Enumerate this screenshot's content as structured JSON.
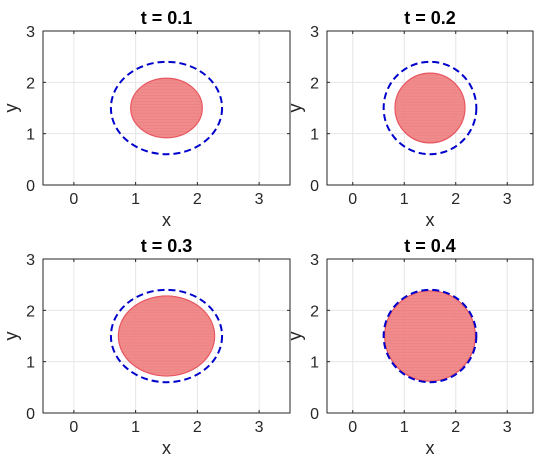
{
  "chart_data": [
    {
      "type": "scatter",
      "title": "t = 0.1",
      "xlabel": "x",
      "ylabel": "y",
      "xlim": [
        -0.5,
        3.5
      ],
      "ylim": [
        0,
        3
      ],
      "xticks": [
        0,
        1,
        2,
        3
      ],
      "yticks": [
        0,
        1,
        2,
        3
      ],
      "grid": true,
      "filled_disk": {
        "cx": 1.5,
        "cy": 1.5,
        "r": 0.58,
        "color": "#f08080"
      },
      "dashed_circle": {
        "cx": 1.5,
        "cy": 1.5,
        "r": 0.9,
        "color": "#0000cc"
      }
    },
    {
      "type": "scatter",
      "title": "t = 0.2",
      "xlabel": "x",
      "ylabel": "y",
      "xlim": [
        -0.5,
        3.5
      ],
      "ylim": [
        0,
        3
      ],
      "xticks": [
        0,
        1,
        2,
        3
      ],
      "yticks": [
        0,
        1,
        2,
        3
      ],
      "grid": true,
      "filled_disk": {
        "cx": 1.5,
        "cy": 1.5,
        "r": 0.68,
        "color": "#f08080"
      },
      "dashed_circle": {
        "cx": 1.5,
        "cy": 1.5,
        "r": 0.9,
        "color": "#0000cc"
      }
    },
    {
      "type": "scatter",
      "title": "t = 0.3",
      "xlabel": "x",
      "ylabel": "y",
      "xlim": [
        -0.5,
        3.5
      ],
      "ylim": [
        0,
        3
      ],
      "xticks": [
        0,
        1,
        2,
        3
      ],
      "yticks": [
        0,
        1,
        2,
        3
      ],
      "grid": true,
      "filled_disk": {
        "cx": 1.5,
        "cy": 1.5,
        "r": 0.78,
        "color": "#f08080"
      },
      "dashed_circle": {
        "cx": 1.5,
        "cy": 1.5,
        "r": 0.9,
        "color": "#0000cc"
      }
    },
    {
      "type": "scatter",
      "title": "t = 0.4",
      "xlabel": "x",
      "ylabel": "y",
      "xlim": [
        -0.5,
        3.5
      ],
      "ylim": [
        0,
        3
      ],
      "xticks": [
        0,
        1,
        2,
        3
      ],
      "yticks": [
        0,
        1,
        2,
        3
      ],
      "grid": true,
      "filled_disk": {
        "cx": 1.5,
        "cy": 1.5,
        "r": 0.88,
        "color": "#f08080"
      },
      "dashed_circle": {
        "cx": 1.5,
        "cy": 1.5,
        "r": 0.9,
        "color": "#0000cc"
      }
    }
  ]
}
